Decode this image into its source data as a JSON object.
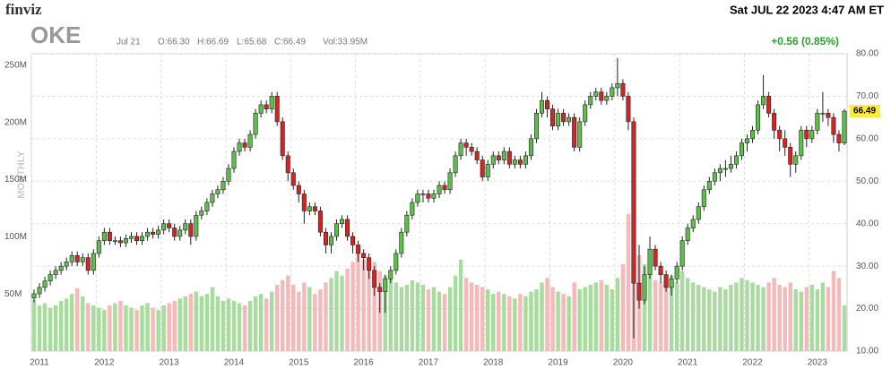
{
  "header": {
    "logo": "finviz",
    "datetime": "Sat JUL 22 2023 4:47 AM ET",
    "ticker": "OKE",
    "date": "Jul 21",
    "open": "O:66.30",
    "high": "H:66.69",
    "low": "L:65.68",
    "close": "C:66.49",
    "volume": "Vol:33.95M",
    "change": "+0.56 (0.85%)",
    "period": "MONTHLY"
  },
  "chart_data": {
    "type": "candlestick",
    "up_color": "#5cbf4a",
    "down_color": "#d42424",
    "up_volume_color": "#a8dc9e",
    "down_volume_color": "#f6b8b8",
    "grid": true,
    "ylim": [
      10,
      80
    ],
    "yticks": [
      {
        "value": 10,
        "label": "10.00"
      },
      {
        "value": 20,
        "label": "20.00"
      },
      {
        "value": 30,
        "label": "30.00"
      },
      {
        "value": 40,
        "label": "40.00"
      },
      {
        "value": 50,
        "label": "50.00"
      },
      {
        "value": 60,
        "label": "60.00"
      },
      {
        "value": 70,
        "label": "70.00"
      },
      {
        "value": 80,
        "label": "80.00"
      }
    ],
    "volume_lim": [
      0,
      260
    ],
    "volume_ticks": [
      {
        "value": 50,
        "label": "50M"
      },
      {
        "value": 100,
        "label": "100M"
      },
      {
        "value": 150,
        "label": "150M"
      },
      {
        "value": 200,
        "label": "200M"
      },
      {
        "value": 250,
        "label": "250M"
      }
    ],
    "categories": [
      "2011",
      null,
      null,
      null,
      null,
      null,
      null,
      null,
      null,
      null,
      null,
      null,
      "2012",
      null,
      null,
      null,
      null,
      null,
      null,
      null,
      null,
      null,
      null,
      null,
      "2013",
      null,
      null,
      null,
      null,
      null,
      null,
      null,
      null,
      null,
      null,
      null,
      "2014",
      null,
      null,
      null,
      null,
      null,
      null,
      null,
      null,
      null,
      null,
      null,
      "2015",
      null,
      null,
      null,
      null,
      null,
      null,
      null,
      null,
      null,
      null,
      null,
      "2016",
      null,
      null,
      null,
      null,
      null,
      null,
      null,
      null,
      null,
      null,
      null,
      "2017",
      null,
      null,
      null,
      null,
      null,
      null,
      null,
      null,
      null,
      null,
      null,
      "2018",
      null,
      null,
      null,
      null,
      null,
      null,
      null,
      null,
      null,
      null,
      null,
      "2019",
      null,
      null,
      null,
      null,
      null,
      null,
      null,
      null,
      null,
      null,
      null,
      "2020",
      null,
      null,
      null,
      null,
      null,
      null,
      null,
      null,
      null,
      null,
      null,
      "2021",
      null,
      null,
      null,
      null,
      null,
      null,
      null,
      null,
      null,
      null,
      null,
      "2022",
      null,
      null,
      null,
      null,
      null,
      null,
      null,
      null,
      null,
      null,
      null,
      "2023",
      null,
      null,
      null,
      null,
      null,
      null
    ],
    "open": [
      22.5,
      23.5,
      25,
      26.5,
      28,
      29,
      30,
      31,
      32.5,
      31,
      32,
      29,
      33,
      36,
      38,
      36,
      36,
      35.5,
      36.5,
      37,
      36,
      37,
      38,
      37.5,
      38.5,
      40,
      39,
      37,
      38.5,
      40,
      37,
      42,
      43,
      45,
      47,
      48,
      50,
      53,
      57,
      59,
      58,
      61,
      66,
      68,
      67,
      70,
      64,
      56,
      52,
      49,
      47,
      43,
      44,
      43,
      38,
      35,
      37,
      40,
      41,
      37,
      35,
      33,
      32,
      29,
      25,
      24,
      27,
      29,
      33,
      38,
      42,
      45,
      47,
      47,
      46,
      47,
      49,
      48,
      52,
      56,
      59,
      58,
      57,
      55,
      51,
      54,
      56,
      55,
      57,
      54,
      55,
      54,
      56,
      60,
      66,
      69,
      67,
      63,
      66,
      64,
      65,
      58,
      64,
      68,
      70,
      71,
      69,
      70,
      72,
      73,
      70,
      64,
      26,
      22,
      28,
      34,
      30,
      28,
      25,
      27,
      30,
      36,
      39,
      41,
      44,
      48,
      50,
      52,
      53,
      53,
      54,
      56,
      59,
      60,
      62,
      68,
      70,
      66,
      62,
      60,
      58,
      54,
      56,
      62,
      60,
      62,
      66,
      66,
      65,
      61,
      59
    ],
    "high": [
      24.5,
      26,
      27.5,
      29,
      30,
      31,
      32,
      33.5,
      33.5,
      33,
      33,
      34,
      37,
      39,
      39,
      37,
      37,
      37.5,
      38,
      38,
      38,
      39,
      39,
      39.5,
      41,
      41,
      40,
      39.5,
      41,
      41,
      43,
      44,
      46,
      48,
      49,
      51,
      54,
      58,
      60,
      60,
      62,
      67,
      69,
      69,
      71,
      71,
      65,
      57,
      53,
      50,
      48,
      45,
      45,
      44,
      39,
      38,
      41,
      42,
      42,
      38,
      36,
      34,
      33,
      30,
      26,
      28,
      30,
      34,
      39,
      43,
      46,
      48,
      48,
      48,
      48,
      50,
      50,
      53,
      57,
      60,
      60,
      59,
      58,
      56,
      55,
      57,
      57,
      58,
      58,
      56,
      56,
      57,
      61,
      67,
      71,
      70,
      68,
      67,
      67,
      66,
      66,
      65,
      69,
      71,
      72,
      72,
      71,
      73,
      79,
      74,
      71,
      65,
      35,
      30,
      37,
      35,
      31,
      29,
      28,
      31,
      37,
      40,
      42,
      45,
      49,
      51,
      53,
      54,
      55,
      56,
      57,
      60,
      61,
      63,
      69,
      75,
      71,
      67,
      63,
      62,
      59,
      57,
      63,
      63,
      63,
      67,
      71,
      67,
      66,
      62,
      67
    ],
    "low": [
      21.5,
      22.5,
      24,
      25.5,
      27,
      28,
      29,
      30,
      30,
      30,
      28,
      28,
      32,
      35,
      35,
      35,
      34.5,
      34.5,
      35.5,
      35,
      35,
      36,
      36.5,
      36.5,
      37.5,
      38,
      36,
      36,
      37.5,
      35,
      36,
      41,
      42,
      44,
      46,
      47,
      49,
      52,
      56,
      57,
      57,
      60,
      65,
      66,
      66,
      63,
      55,
      50,
      48,
      45,
      40,
      42,
      42,
      37,
      33,
      33,
      36,
      39,
      36,
      33,
      31,
      29,
      27,
      23,
      19,
      19,
      26,
      28,
      32,
      37,
      41,
      44,
      45,
      45,
      45,
      46,
      47,
      47,
      51,
      55,
      56,
      56,
      54,
      50,
      50,
      53,
      54,
      54,
      53,
      53,
      53,
      53,
      55,
      59,
      65,
      65,
      62,
      62,
      63,
      63,
      57,
      57,
      63,
      67,
      69,
      68,
      68,
      69,
      70,
      69,
      62,
      13,
      20,
      21,
      27,
      29,
      26,
      24,
      23,
      26,
      29,
      35,
      38,
      40,
      43,
      47,
      49,
      50,
      51,
      52,
      53,
      55,
      57,
      59,
      61,
      67,
      65,
      60,
      57,
      56,
      51,
      52,
      55,
      58,
      59,
      61,
      64,
      63,
      59,
      57,
      58.5
    ],
    "close": [
      23.5,
      25,
      26.5,
      28,
      29,
      30,
      31,
      32.5,
      31,
      32,
      29,
      33,
      36,
      38,
      36,
      36,
      35.5,
      36.5,
      37,
      36,
      37,
      38,
      37.5,
      38.5,
      40,
      39,
      37,
      38.5,
      40,
      37,
      42,
      43,
      45,
      47,
      48,
      50,
      53,
      57,
      59,
      58,
      61,
      66,
      68,
      67,
      70,
      64,
      56,
      52,
      49,
      47,
      43,
      44,
      43,
      38,
      35,
      37,
      40,
      41,
      37,
      35,
      33,
      32,
      29,
      25,
      24,
      27,
      29,
      33,
      38,
      42,
      45,
      47,
      47,
      46,
      47,
      49,
      48,
      52,
      56,
      59,
      58,
      57,
      55,
      51,
      54,
      56,
      55,
      57,
      54,
      55,
      54,
      56,
      60,
      66,
      69,
      67,
      63,
      66,
      64,
      65,
      58,
      64,
      68,
      70,
      71,
      69,
      70,
      72,
      73,
      70,
      64,
      26,
      22,
      28,
      34,
      30,
      28,
      25,
      27,
      30,
      36,
      39,
      41,
      44,
      48,
      50,
      52,
      53,
      53,
      54,
      56,
      59,
      60,
      62,
      68,
      70,
      66,
      62,
      60,
      58,
      54,
      56,
      62,
      60,
      62,
      66,
      66,
      65,
      61,
      59,
      66.49
    ],
    "volume": [
      45,
      40,
      42,
      38,
      40,
      44,
      46,
      50,
      55,
      48,
      42,
      40,
      38,
      36,
      40,
      42,
      44,
      40,
      38,
      36,
      40,
      42,
      38,
      36,
      40,
      42,
      44,
      46,
      48,
      50,
      52,
      48,
      50,
      56,
      48,
      44,
      46,
      44,
      42,
      40,
      44,
      48,
      50,
      46,
      52,
      58,
      62,
      66,
      58,
      52,
      60,
      56,
      50,
      54,
      60,
      64,
      70,
      66,
      72,
      78,
      86,
      80,
      74,
      78,
      70,
      66,
      64,
      60,
      56,
      58,
      62,
      60,
      58,
      54,
      56,
      52,
      50,
      56,
      66,
      80,
      64,
      60,
      58,
      56,
      54,
      50,
      52,
      50,
      48,
      46,
      50,
      48,
      52,
      54,
      60,
      64,
      56,
      52,
      50,
      48,
      60,
      54,
      56,
      58,
      60,
      62,
      58,
      54,
      64,
      76,
      120,
      100,
      84,
      76,
      70,
      62,
      60,
      64,
      66,
      60,
      70,
      64,
      60,
      58,
      56,
      54,
      52,
      56,
      54,
      58,
      60,
      64,
      62,
      60,
      58,
      56,
      60,
      64,
      58,
      56,
      60,
      54,
      52,
      56,
      58,
      54,
      60,
      56,
      70,
      64,
      40
    ]
  }
}
